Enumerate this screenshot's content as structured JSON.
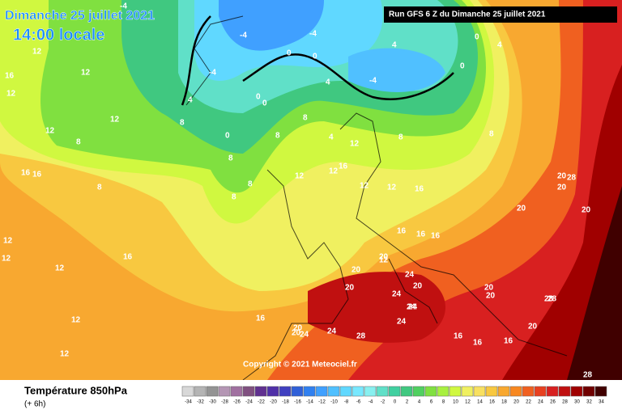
{
  "header": {
    "date": "Dimanche 25 juillet 2021",
    "time": "14:00 locale",
    "run": "Run GFS 6 Z du Dimanche 25 juillet 2021"
  },
  "copyright": "Copyright © 2021 Meteociel.fr",
  "footer": {
    "title": "Température 850hPa",
    "subtitle": "(+ 6h)"
  },
  "scale": {
    "values": [
      -34,
      -32,
      -30,
      -28,
      -26,
      -24,
      -22,
      -20,
      -18,
      -16,
      -14,
      -12,
      -10,
      -8,
      -6,
      -4,
      -2,
      0,
      2,
      4,
      6,
      8,
      10,
      12,
      14,
      16,
      18,
      20,
      22,
      24,
      26,
      28,
      30,
      32,
      34
    ],
    "colors": [
      "#d8d8d8",
      "#b4b4b4",
      "#949494",
      "#b496b4",
      "#a070a0",
      "#805080",
      "#603090",
      "#5030a8",
      "#4040c0",
      "#3060d8",
      "#3080f0",
      "#40a0ff",
      "#50c0ff",
      "#60d8ff",
      "#78e8ff",
      "#88f0f0",
      "#60e0c8",
      "#40d0a0",
      "#40c880",
      "#50d060",
      "#80e040",
      "#a8f040",
      "#d0f840",
      "#f0f060",
      "#f8e060",
      "#f8c840",
      "#f8a830",
      "#f88820",
      "#f06020",
      "#e84020",
      "#d82020",
      "#c01010",
      "#a00000",
      "#700000",
      "#400000"
    ]
  },
  "contour_labels": [
    "12",
    "12",
    "16",
    "12",
    "12",
    "12",
    "16",
    "16",
    "12",
    "12",
    "12",
    "12",
    "12",
    "16",
    "8",
    "8",
    "8",
    "8",
    "8",
    "8",
    "8",
    "8",
    "12",
    "12",
    "16",
    "12",
    "12",
    "12",
    "16",
    "16",
    "12",
    "16",
    "20",
    "16",
    "20",
    "20",
    "24",
    "20",
    "24",
    "20",
    "24",
    "24",
    "28",
    "24",
    "20",
    "16",
    "20",
    "24",
    "28",
    "20",
    "20",
    "20",
    "20",
    "20",
    "16",
    "16",
    "16",
    "28",
    "24",
    "20",
    "28",
    "28",
    "-4",
    "-4",
    "-4",
    "-4",
    "0",
    "0",
    "0",
    "0",
    "0",
    "4",
    "4",
    "4",
    "0",
    "-4",
    "0",
    "4",
    "4",
    "8",
    "8"
  ]
}
